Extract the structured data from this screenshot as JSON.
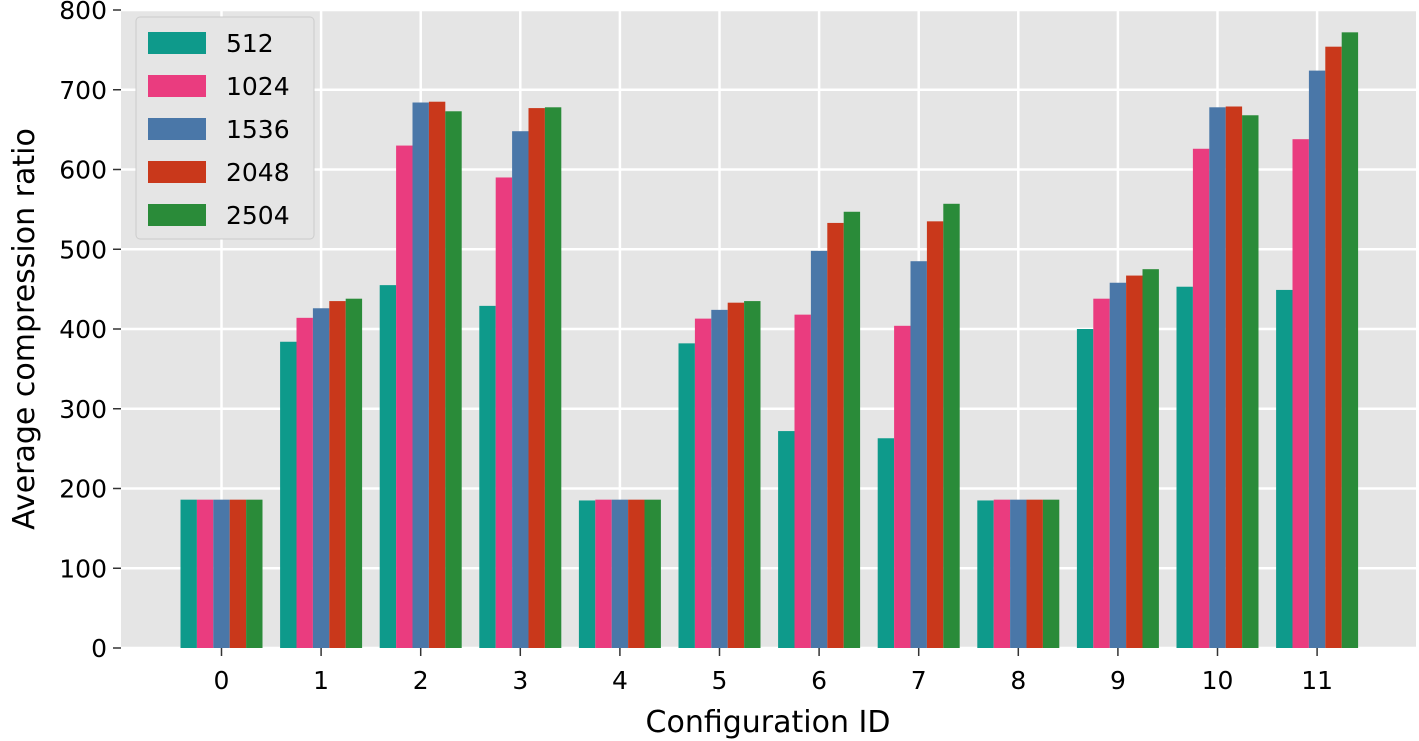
{
  "chart_data": {
    "type": "bar",
    "title": "",
    "xlabel": "Configuration ID",
    "ylabel": "Average compression ratio",
    "ylim": [
      0,
      800
    ],
    "yticks": [
      0,
      100,
      200,
      300,
      400,
      500,
      600,
      700,
      800
    ],
    "grid": true,
    "legend_position": "top-left",
    "categories": [
      "0",
      "1",
      "2",
      "3",
      "4",
      "5",
      "6",
      "7",
      "8",
      "9",
      "10",
      "11"
    ],
    "series": [
      {
        "name": "512",
        "color": "#0e9a8b",
        "values": [
          186,
          384,
          455,
          429,
          185,
          382,
          272,
          263,
          185,
          400,
          453,
          449
        ]
      },
      {
        "name": "1024",
        "color": "#ea3c7f",
        "values": [
          186,
          414,
          630,
          590,
          186,
          413,
          418,
          404,
          186,
          438,
          626,
          638
        ]
      },
      {
        "name": "1536",
        "color": "#4a77a8",
        "values": [
          186,
          426,
          684,
          648,
          186,
          424,
          498,
          485,
          186,
          458,
          678,
          724
        ]
      },
      {
        "name": "2048",
        "color": "#c9381b",
        "values": [
          186,
          435,
          685,
          677,
          186,
          433,
          533,
          535,
          186,
          467,
          679,
          754
        ]
      },
      {
        "name": "2504",
        "color": "#2a8b39",
        "values": [
          186,
          438,
          673,
          678,
          186,
          435,
          547,
          557,
          186,
          475,
          668,
          772
        ]
      }
    ]
  }
}
